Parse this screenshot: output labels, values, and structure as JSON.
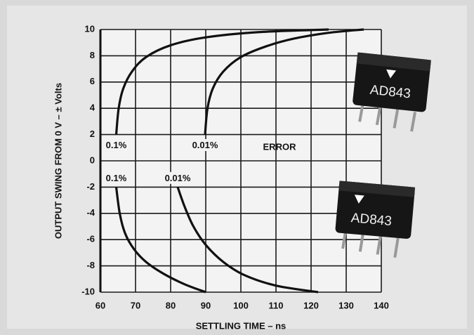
{
  "chart_data": {
    "type": "line",
    "xlabel": "SETTLING TIME – ns",
    "ylabel": "OUTPUT SWING FROM 0 V – ± Volts",
    "annotation": "ERROR",
    "chip_labels": [
      "AD843",
      "AD843"
    ],
    "xlim": [
      60,
      140
    ],
    "ylim": [
      -10,
      10
    ],
    "xticks": [
      60,
      70,
      80,
      90,
      100,
      110,
      120,
      130,
      140
    ],
    "yticks": [
      -10,
      -8,
      -6,
      -4,
      -2,
      0,
      2,
      4,
      6,
      8,
      10
    ],
    "grid": true,
    "series": [
      {
        "name": "0.1%",
        "color": "#111111",
        "x": [
          64.5,
          65.2,
          66.5,
          69,
          73,
          80,
          90,
          105,
          125
        ],
        "values": [
          2,
          4,
          5.5,
          6.8,
          7.9,
          8.8,
          9.4,
          9.8,
          10
        ]
      },
      {
        "name": "0.01%",
        "color": "#111111",
        "x": [
          89.8,
          90.5,
          92,
          95,
          100,
          107,
          115,
          125,
          135
        ],
        "values": [
          2,
          4,
          5.5,
          6.8,
          7.9,
          8.7,
          9.3,
          9.75,
          10
        ]
      },
      {
        "name": "0.1%",
        "color": "#111111",
        "x": [
          64.5,
          65.5,
          67,
          69.5,
          73,
          78,
          84,
          90
        ],
        "values": [
          -2,
          -4,
          -5.5,
          -6.7,
          -7.7,
          -8.6,
          -9.4,
          -10
        ]
      },
      {
        "name": "0.01%",
        "color": "#111111",
        "x": [
          82,
          84,
          86.5,
          90,
          95,
          101,
          110,
          122
        ],
        "values": [
          -2,
          -3.5,
          -5,
          -6.4,
          -7.7,
          -8.7,
          -9.5,
          -10
        ]
      }
    ]
  }
}
